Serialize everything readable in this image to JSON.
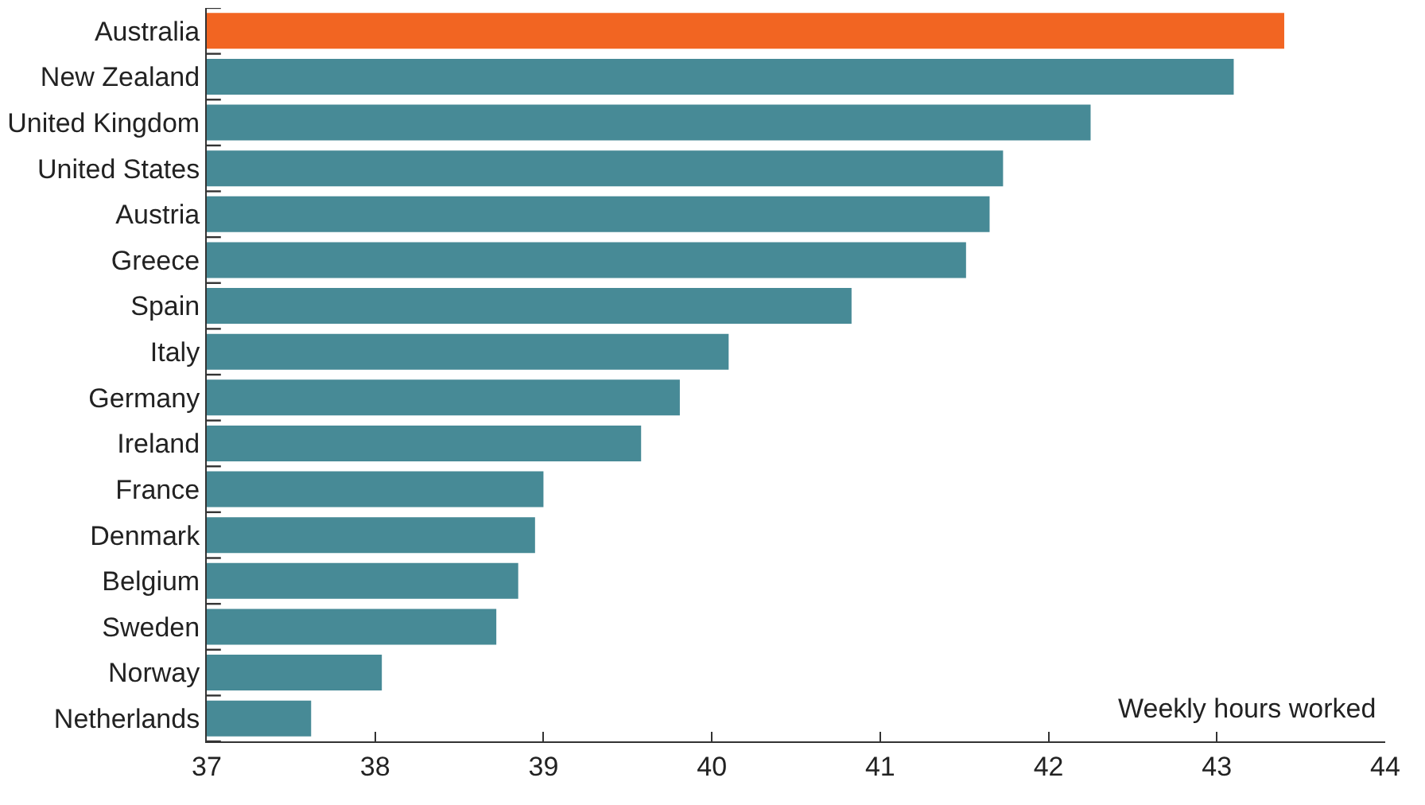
{
  "chart_data": {
    "type": "bar",
    "orientation": "horizontal",
    "categories": [
      "Australia",
      "New Zealand",
      "United Kingdom",
      "United States",
      "Austria",
      "Greece",
      "Spain",
      "Italy",
      "Germany",
      "Ireland",
      "France",
      "Denmark",
      "Belgium",
      "Sweden",
      "Norway",
      "Netherlands"
    ],
    "values": [
      43.4,
      43.1,
      42.25,
      41.73,
      41.65,
      41.51,
      40.83,
      40.1,
      39.81,
      39.58,
      39.0,
      38.95,
      38.85,
      38.72,
      38.04,
      37.62
    ],
    "colors": [
      "#f26522",
      "#478a96",
      "#478a96",
      "#478a96",
      "#478a96",
      "#478a96",
      "#478a96",
      "#478a96",
      "#478a96",
      "#478a96",
      "#478a96",
      "#478a96",
      "#478a96",
      "#478a96",
      "#478a96",
      "#478a96"
    ],
    "xlim": [
      37,
      44
    ],
    "xticks": [
      37,
      38,
      39,
      40,
      41,
      42,
      43,
      44
    ],
    "annotations": [
      "Weekly hours worked"
    ]
  }
}
